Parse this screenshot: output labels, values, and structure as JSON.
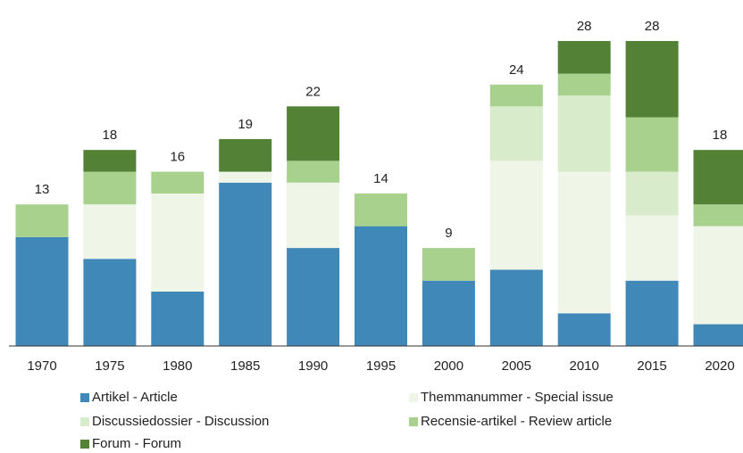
{
  "chart_data": {
    "type": "stacked_bar",
    "categories": [
      "1970",
      "1975",
      "1980",
      "1985",
      "1990",
      "1995",
      "2000",
      "2005",
      "2010",
      "2015",
      "2020"
    ],
    "series": [
      {
        "name": "Artikel - Article",
        "color": "#3f88b8",
        "values": [
          10,
          8,
          5,
          15,
          9,
          11,
          6,
          7,
          3,
          6,
          2
        ]
      },
      {
        "name": "Themmanummer - Special issue",
        "color": "#eff6e8",
        "values": [
          0,
          5,
          9,
          1,
          6,
          0,
          0,
          10,
          13,
          6,
          9
        ]
      },
      {
        "name": "Discussiedossier - Discussion",
        "color": "#d8ebca",
        "values": [
          0,
          0,
          0,
          0,
          0,
          0,
          0,
          5,
          7,
          4,
          0
        ]
      },
      {
        "name": "Recensie-artikel - Review article",
        "color": "#a9d18e",
        "values": [
          3,
          3,
          2,
          0,
          2,
          3,
          3,
          2,
          2,
          5,
          2
        ]
      },
      {
        "name": "Forum - Forum",
        "color": "#538135",
        "values": [
          0,
          2,
          0,
          3,
          5,
          0,
          0,
          0,
          3,
          7,
          5
        ]
      }
    ],
    "totals": [
      13,
      18,
      16,
      19,
      22,
      14,
      9,
      24,
      28,
      28,
      18
    ],
    "ylim": [
      0,
      28
    ]
  }
}
